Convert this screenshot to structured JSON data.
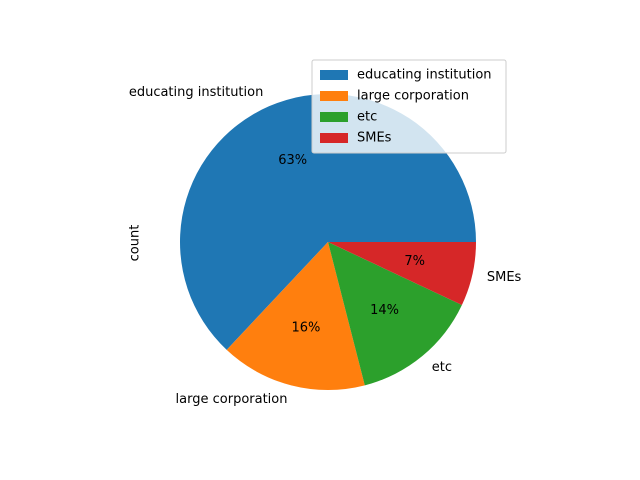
{
  "chart_data": {
    "type": "pie",
    "ylabel": "count",
    "slices": [
      {
        "label": "educating institution",
        "percent_label": "63%",
        "value": 63,
        "color": "#1f77b4"
      },
      {
        "label": "large corporation",
        "percent_label": "16%",
        "value": 16,
        "color": "#ff7f0e"
      },
      {
        "label": "etc",
        "percent_label": "14%",
        "value": 14,
        "color": "#2ca02c"
      },
      {
        "label": "SMEs",
        "percent_label": "7%",
        "value": 7,
        "color": "#d62728"
      }
    ],
    "start_angle_deg": 0,
    "direction": "counterclockwise",
    "legend": {
      "placement": "top-right",
      "entries": [
        "educating institution",
        "large corporation",
        "etc",
        "SMEs"
      ]
    }
  }
}
